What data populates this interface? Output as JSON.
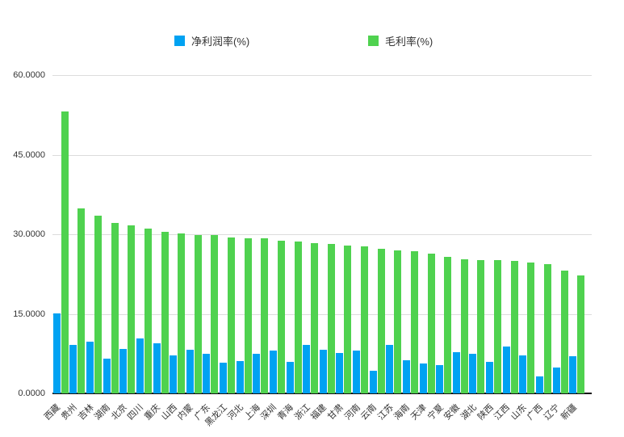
{
  "legend": {
    "net_label": "净利润率(%)",
    "gross_label": "毛利率(%)"
  },
  "chart_data": {
    "type": "bar",
    "title": "",
    "xlabel": "",
    "ylabel": "",
    "ylim": [
      0,
      60
    ],
    "grid": true,
    "legend_position": "top",
    "yticks": [
      "60.0000",
      "45.0000",
      "30.0000",
      "15.0000",
      "0.0000"
    ],
    "categories": [
      "西藏",
      "贵州",
      "吉林",
      "湖南",
      "北京",
      "四川",
      "重庆",
      "山西",
      "内蒙",
      "广东",
      "黑龙江",
      "河北",
      "上海",
      "深圳",
      "青海",
      "浙江",
      "福建",
      "甘肃",
      "河南",
      "云南",
      "江苏",
      "海南",
      "天津",
      "宁夏",
      "安徽",
      "湖北",
      "陕西",
      "江西",
      "山东",
      "广西",
      "辽宁",
      "新疆"
    ],
    "series": [
      {
        "id": "net-profit-rate",
        "name": "净利润率(%)",
        "color": "#00a2f2",
        "values": [
          15.1,
          9.2,
          9.7,
          6.5,
          8.4,
          10.3,
          9.5,
          7.2,
          8.3,
          7.5,
          5.8,
          6.1,
          7.4,
          8.1,
          6.0,
          9.1,
          8.3,
          7.6,
          8.0,
          4.2,
          9.1,
          6.2,
          5.7,
          5.4,
          7.7,
          7.5,
          6.0,
          8.8,
          7.1,
          3.2,
          4.9,
          7.0
        ]
      },
      {
        "id": "gross-margin",
        "name": "毛利率(%)",
        "color": "#4fd24f",
        "values": [
          53.1,
          34.8,
          33.5,
          32.2,
          31.7,
          31.1,
          30.5,
          30.1,
          29.9,
          29.8,
          29.4,
          29.3,
          29.2,
          28.8,
          28.7,
          28.4,
          28.1,
          27.8,
          27.7,
          27.2,
          27.0,
          26.8,
          26.4,
          25.7,
          25.3,
          25.2,
          25.1,
          25.0,
          24.7,
          24.4,
          23.2,
          22.2
        ]
      }
    ],
    "colors": {
      "net": "#00a2f2",
      "gross": "#4fd24f",
      "gridline": "#dcdcdc",
      "axis": "#111111",
      "text": "#333333",
      "background": "#ffffff"
    }
  }
}
